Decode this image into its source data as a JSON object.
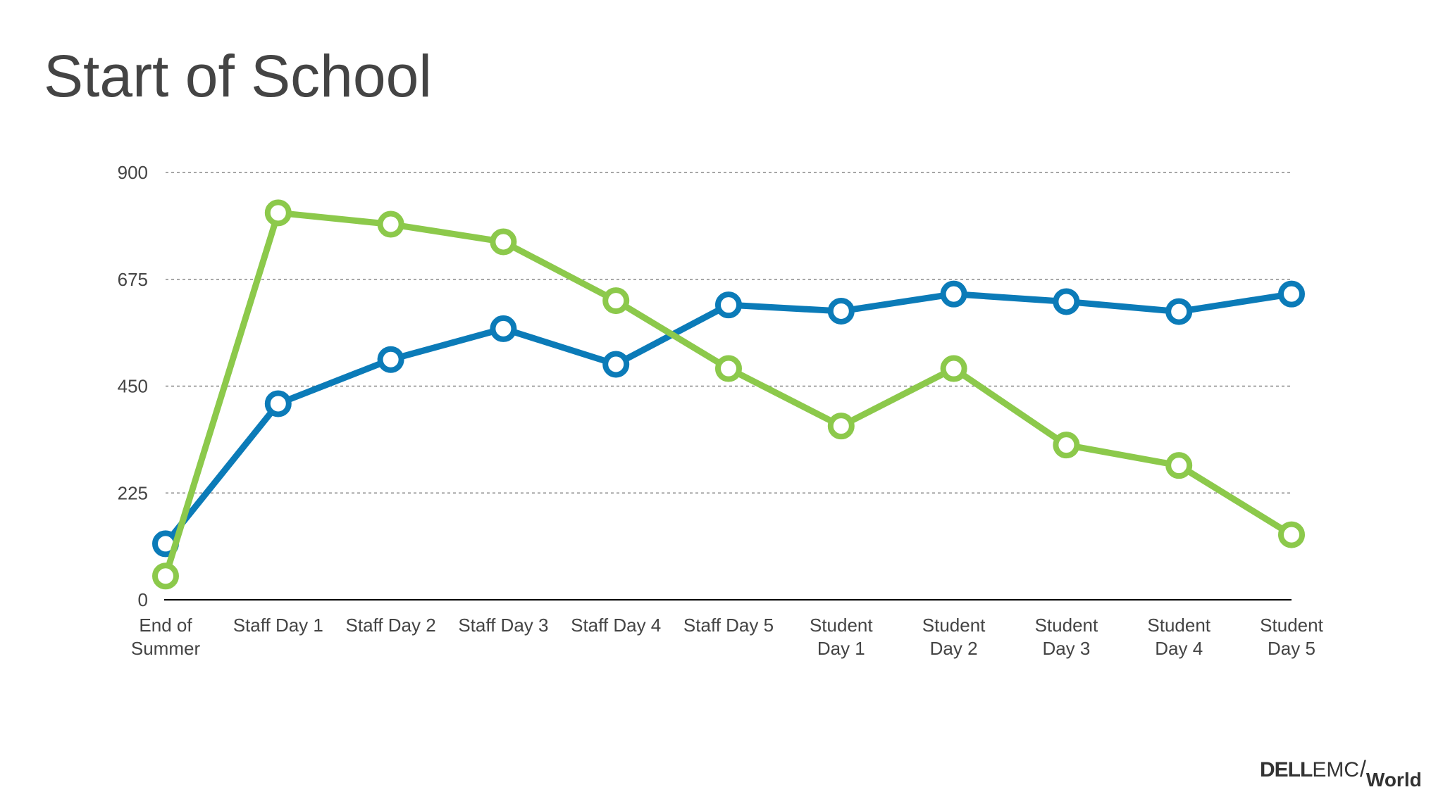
{
  "slide": {
    "title": "Start of School"
  },
  "logo": {
    "brand": "DELL",
    "sub": "EMC",
    "slash": "/",
    "event": "World"
  },
  "colors": {
    "series_1": "#0b7bb8",
    "series_2": "#8cc94b",
    "grid": "#888888",
    "axis": "#000000",
    "text": "#444444"
  },
  "chart_data": {
    "type": "line",
    "title": "Start of School",
    "xlabel": "",
    "ylabel": "",
    "ylim": [
      0,
      900
    ],
    "yticks": [
      0,
      225,
      450,
      675,
      900
    ],
    "grid": true,
    "legend": "none",
    "categories": [
      [
        "End of",
        "Summer"
      ],
      [
        "Staff Day 1"
      ],
      [
        "Staff Day 2"
      ],
      [
        "Staff Day 3"
      ],
      [
        "Staff Day 4"
      ],
      [
        "Staff Day 5"
      ],
      [
        "Student",
        "Day 1"
      ],
      [
        "Student",
        "Day 2"
      ],
      [
        "Student",
        "Day 3"
      ],
      [
        "Student",
        "Day 4"
      ],
      [
        "Student",
        "Day 5"
      ]
    ],
    "series": [
      {
        "name": "blue-series",
        "color": "#0b7bb8",
        "values": [
          118,
          413,
          506,
          571,
          496,
          621,
          608,
          644,
          628,
          607,
          644
        ]
      },
      {
        "name": "green-series",
        "color": "#8cc94b",
        "values": [
          50,
          815,
          791,
          754,
          630,
          487,
          366,
          487,
          326,
          283,
          137
        ]
      }
    ]
  }
}
